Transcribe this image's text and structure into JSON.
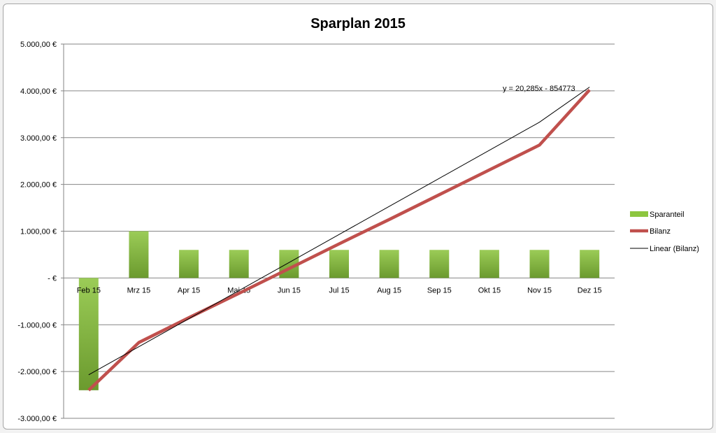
{
  "chart_data": {
    "type": "bar",
    "title": "Sparplan 2015",
    "categories": [
      "Feb 15",
      "Mrz 15",
      "Apr 15",
      "Mai 15",
      "Jun 15",
      "Jul 15",
      "Aug 15",
      "Sep 15",
      "Okt 15",
      "Nov 15",
      "Dez 15"
    ],
    "ylim": [
      -3000,
      5000
    ],
    "yticks": [
      5000,
      4000,
      3000,
      2000,
      1000,
      0,
      -1000,
      -2000,
      -3000
    ],
    "ytick_labels": [
      "5.000,00 €",
      "4.000,00 €",
      "3.000,00 €",
      "2.000,00 €",
      "1.000,00 €",
      "-   €",
      "-1.000,00 €",
      "-2.000,00 €",
      "-3.000,00 €"
    ],
    "grid": true,
    "series": [
      {
        "name": "Sparanteil",
        "kind": "bar",
        "color": "#8dc63f",
        "values": [
          -2400,
          1000,
          600,
          600,
          600,
          600,
          600,
          600,
          600,
          600,
          600
        ]
      },
      {
        "name": "Bilanz",
        "kind": "line",
        "color": "#c0504d",
        "values": [
          -2400,
          -1380,
          -850,
          -330,
          200,
          730,
          1250,
          1780,
          2310,
          2840,
          4020
        ]
      },
      {
        "name": "Linear (Bilanz)",
        "kind": "trendline",
        "color": "#000000",
        "values": [
          -2070,
          -1470,
          -870,
          -270,
          330,
          930,
          1530,
          2130,
          2730,
          3330,
          4080
        ]
      }
    ],
    "trendline_equation": "y = 20,285x - 854773",
    "legend_position": "right"
  }
}
